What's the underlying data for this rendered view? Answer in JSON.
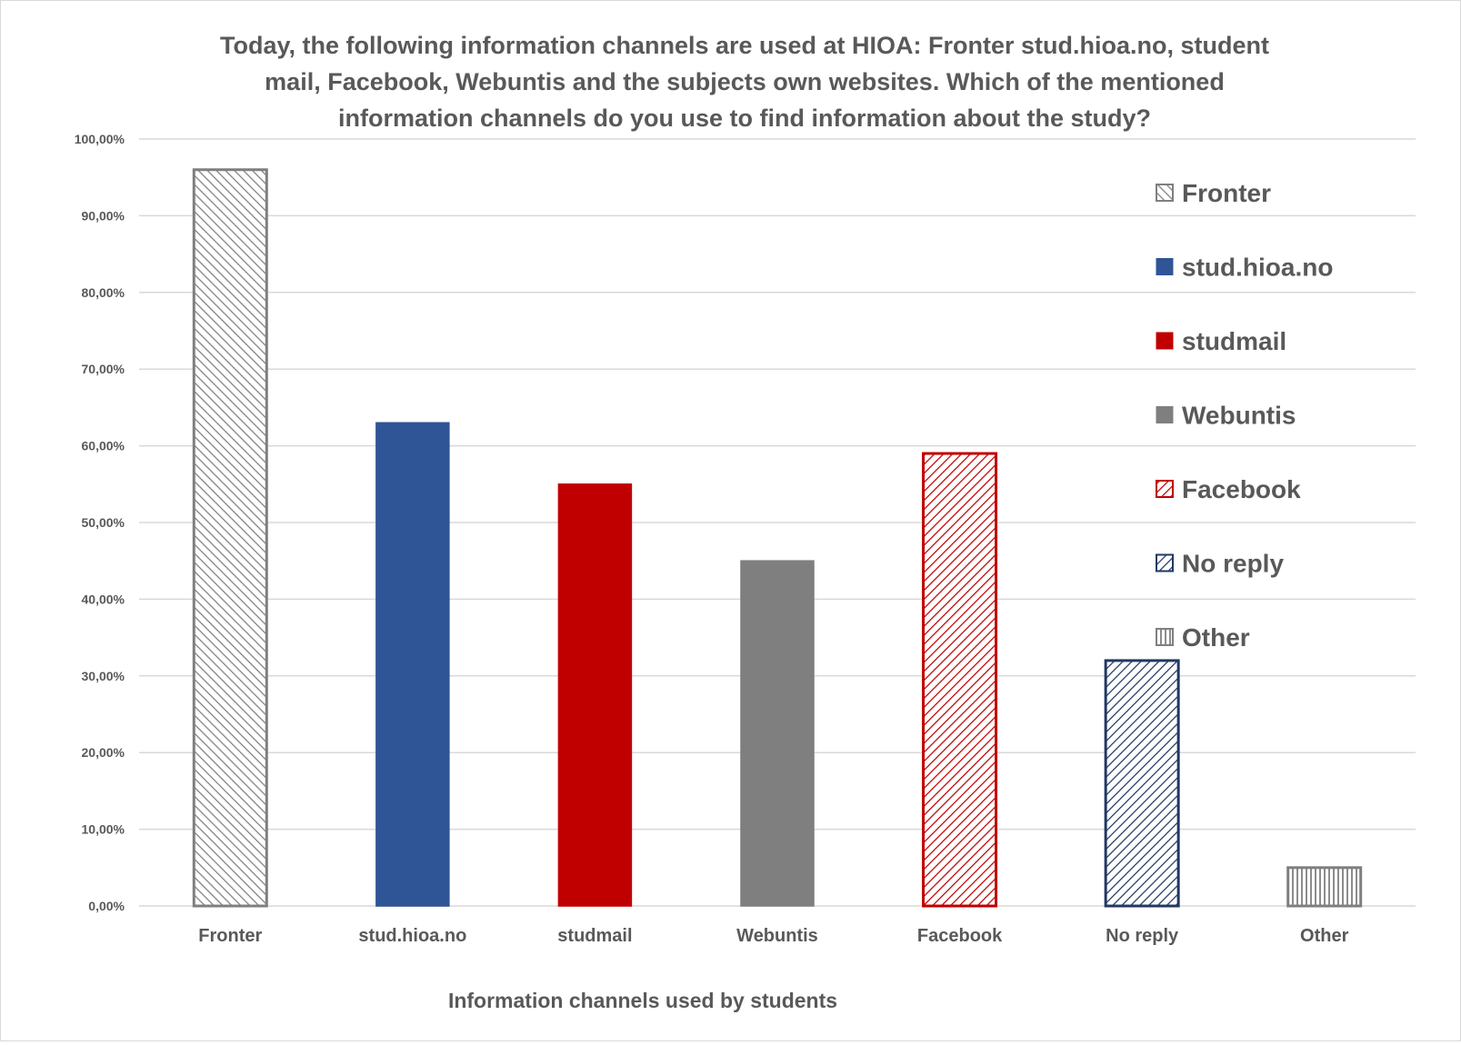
{
  "chart_data": {
    "type": "bar",
    "title_lines": [
      "Today, the following information channels are used at HIOA: Fronter stud.hioa.no, student",
      "mail, Facebook, Webuntis and the subjects own websites. Which of the mentioned",
      "information channels do you use to find information about the study?"
    ],
    "xlabel": "Information channels used by students",
    "ylabel": "",
    "ylim": [
      0,
      100
    ],
    "yticks": [
      "0,00%",
      "10,00%",
      "20,00%",
      "30,00%",
      "40,00%",
      "50,00%",
      "60,00%",
      "70,00%",
      "80,00%",
      "90,00%",
      "100,00%"
    ],
    "grid": true,
    "legend_position": "right",
    "categories": [
      "Fronter",
      "stud.hioa.no",
      "studmail",
      "Webuntis",
      "Facebook",
      "No reply",
      "Other"
    ],
    "values": [
      96,
      63,
      55,
      45,
      59,
      32,
      5
    ],
    "series_styles": [
      {
        "name": "Fronter",
        "color": "#7f7f7f",
        "fill": "hatch-backslash"
      },
      {
        "name": "stud.hioa.no",
        "color": "#2f5597",
        "fill": "solid"
      },
      {
        "name": "studmail",
        "color": "#c00000",
        "fill": "solid"
      },
      {
        "name": "Webuntis",
        "color": "#7f7f7f",
        "fill": "solid"
      },
      {
        "name": "Facebook",
        "color": "#c00000",
        "fill": "hatch-slash"
      },
      {
        "name": "No reply",
        "color": "#203864",
        "fill": "hatch-slash"
      },
      {
        "name": "Other",
        "color": "#7f7f7f",
        "fill": "hatch-vertical"
      }
    ]
  }
}
